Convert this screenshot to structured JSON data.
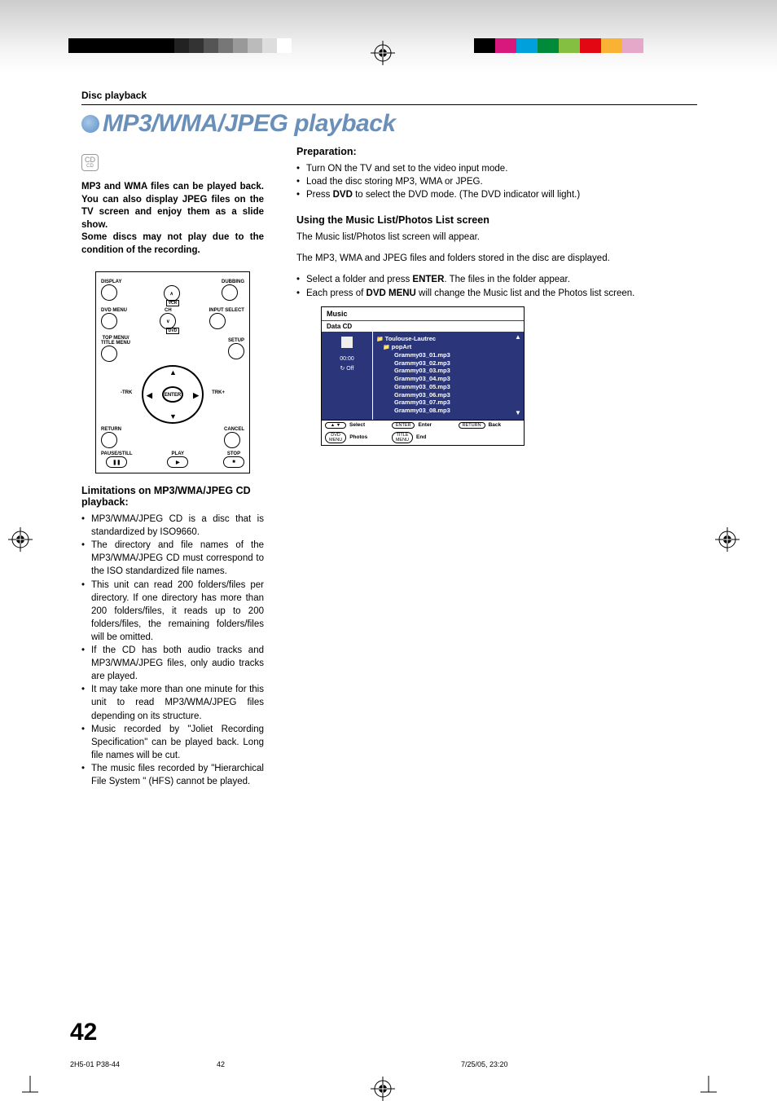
{
  "top_bars": {
    "black_count": 5,
    "grey_shades": [
      "#222",
      "#333",
      "#555",
      "#777",
      "#999",
      "#bbb",
      "#ddd",
      "#fff"
    ],
    "color_bar": [
      "#000000",
      "#d8187d",
      "#00a0dc",
      "#008a3a",
      "#84bf41",
      "#e30613",
      "#f9b233",
      "#e6a8c8"
    ]
  },
  "breadcrumb": "Disc playback",
  "title": "MP3/WMA/JPEG playback",
  "badge": {
    "main": "CD",
    "sub": "CD"
  },
  "intro": [
    "MP3 and WMA files can be played back. You can also display JPEG files on the TV screen and enjoy them as a slide show.",
    "Some discs may not play due to the condition of the recording."
  ],
  "remote": {
    "labels": {
      "display": "DISPLAY",
      "dubbing": "DUBBING",
      "vcr": "VCR",
      "dvdmenu": "DVD MENU",
      "ch": "CH",
      "input": "INPUT SELECT",
      "dvd": "DVD",
      "topmenu": "TOP MENU/\nTITLE MENU",
      "setup": "SETUP",
      "enter": "ENTER",
      "trk_minus": "-TRK",
      "trk_plus": "TRK+",
      "return": "RETURN",
      "cancel": "CANCEL",
      "pause": "PAUSE/STILL",
      "play": "PLAY",
      "stop": "STOP"
    }
  },
  "limitations": {
    "heading": "Limitations on MP3/WMA/JPEG CD playback:",
    "items": [
      "MP3/WMA/JPEG CD is a disc that is standardized by ISO9660.",
      "The directory and file names of the MP3/WMA/JPEG CD must correspond to the ISO standardized file names.",
      "This unit can read 200 folders/files per directory. If one directory has more than 200 folders/files, it reads up to 200 folders/files, the remaining folders/files will be omitted.",
      "If the CD has both audio tracks and MP3/WMA/JPEG files, only audio tracks are played.",
      "It may take more than one minute for this unit to read MP3/WMA/JPEG files depending on its structure.",
      "Music recorded by \"Joliet Recording Specification\" can be played back. Long file names will be cut.",
      "The music files recorded by \"Hierarchical File System \" (HFS) cannot be played."
    ]
  },
  "prep": {
    "heading": "Preparation:",
    "items": [
      "Turn ON the TV and set to the video input mode.",
      "Load the disc storing MP3, WMA or JPEG.",
      {
        "pre": "Press ",
        "bold": "DVD",
        "post": " to select the DVD mode. (The DVD indicator will light.)"
      }
    ]
  },
  "using": {
    "heading": "Using the Music List/Photos List screen",
    "p1": "The Music list/Photos list screen will appear.",
    "p2": "The MP3, WMA and JPEG files and folders stored in the disc are displayed.",
    "items": [
      {
        "pre": "Select a folder and press ",
        "bold": "ENTER",
        "post": ". The files in the folder appear."
      },
      {
        "pre": "Each press of ",
        "bold": "DVD MENU",
        "post": " will change the Music list and the Photos list screen."
      }
    ]
  },
  "music_screen": {
    "title": "Music",
    "subtitle": "Data CD",
    "time": "00:00",
    "repeat": "Off",
    "folders": [
      "Toulouse-Lautrec",
      "popArt"
    ],
    "files": [
      "Grammy03_01.mp3",
      "Grammy03_02.mp3",
      "Grammy03_03.mp3",
      "Grammy03_04.mp3",
      "Grammy03_05.mp3",
      "Grammy03_06.mp3",
      "Grammy03_07.mp3",
      "Grammy03_08.mp3"
    ],
    "buttons": [
      {
        "icon": "▲ ▼",
        "label": "Select"
      },
      {
        "icon": "ENTER",
        "label": "Enter"
      },
      {
        "icon": "RETURN",
        "label": "Back"
      },
      {
        "icon": "DVD\nMENU",
        "label": "Photos"
      },
      {
        "icon": "TITLE\nMENU",
        "label": "End"
      }
    ]
  },
  "page_number": "42",
  "footer": {
    "file": "2H5-01 P38-44",
    "page": "42",
    "date": "7/25/05, 23:20"
  }
}
